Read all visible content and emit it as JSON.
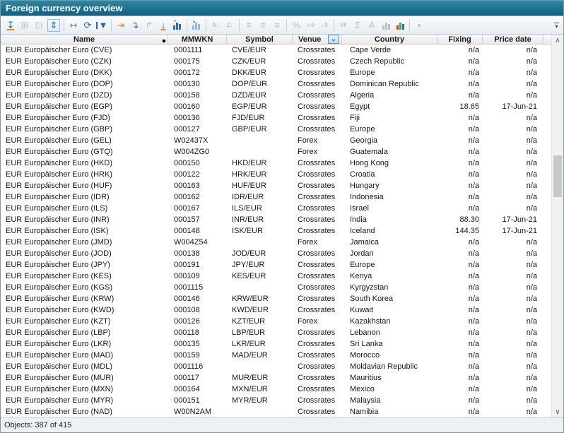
{
  "window": {
    "title": "Foreign currency overview"
  },
  "statusbar": {
    "text": "Objects: 387 of 415"
  },
  "toolbar": {
    "overflow_glyph": "▾",
    "items": [
      {
        "name": "import-row-icon",
        "glyph": "↧",
        "style": "blue-orange",
        "enabled": true
      },
      {
        "name": "expand-rows-icon",
        "glyph": "⊞",
        "enabled": false
      },
      {
        "name": "group-rows-icon",
        "glyph": "⊡",
        "enabled": false
      },
      {
        "name": "fit-height-icon",
        "glyph": "⇕",
        "style": "blue-box",
        "enabled": true
      },
      {
        "sep": true
      },
      {
        "name": "new-view-icon",
        "glyph": "⇿",
        "style": "blue",
        "enabled": true
      },
      {
        "name": "refresh-icon",
        "glyph": "⟳",
        "style": "blue",
        "enabled": true
      },
      {
        "name": "filter-icon",
        "glyph": "▼",
        "style": "filter",
        "enabled": true
      },
      {
        "sep": true
      },
      {
        "name": "insert-column-icon",
        "glyph": "⇥",
        "style": "orange",
        "enabled": true
      },
      {
        "name": "move-down-icon",
        "glyph": "↴",
        "style": "blue",
        "enabled": true
      },
      {
        "name": "move-up-icon",
        "glyph": "↱",
        "enabled": false
      },
      {
        "name": "sort-to-bottom-icon",
        "glyph": "↓",
        "style": "blue-orange",
        "enabled": true
      },
      {
        "name": "chart-values-icon",
        "style": "bars-blue",
        "marker": "▾",
        "marker_color": "#e8820c",
        "enabled": true
      },
      {
        "sep": true
      },
      {
        "name": "stripe-columns-icon",
        "style": "bars-striped",
        "marker": "▴",
        "marker_color": "#3fae49",
        "enabled": true
      },
      {
        "sep": true
      },
      {
        "name": "sort-asc-icon",
        "glyph": "A↓",
        "style": "tiny",
        "enabled": false
      },
      {
        "name": "sort-desc-icon",
        "glyph": "Z↓",
        "style": "tiny",
        "enabled": false
      },
      {
        "sep": true
      },
      {
        "name": "align-left-icon",
        "glyph": "≡",
        "enabled": false
      },
      {
        "name": "align-center-icon",
        "glyph": "≡",
        "enabled": false
      },
      {
        "name": "align-right-icon",
        "glyph": "≡",
        "enabled": false
      },
      {
        "sep": true
      },
      {
        "name": "percent-icon",
        "glyph": "%",
        "enabled": false
      },
      {
        "name": "add-decimal-icon",
        "glyph": "+.0",
        "style": "tiny",
        "enabled": false
      },
      {
        "name": "remove-decimal-icon",
        "glyph": "-.0",
        "style": "tiny",
        "enabled": false
      },
      {
        "sep": true
      },
      {
        "name": "value-format-icon",
        "glyph": "0‖",
        "style": "tiny",
        "enabled": false
      },
      {
        "name": "sum-icon",
        "glyph": "Σ",
        "enabled": false
      },
      {
        "name": "font-icon",
        "glyph": "A",
        "enabled": false
      },
      {
        "name": "chart-gray-icon",
        "style": "bars-gray",
        "enabled": false
      },
      {
        "name": "chart-colored-icon",
        "style": "bars-colored",
        "enabled": true
      },
      {
        "sep": true
      },
      {
        "name": "stop-icon",
        "glyph": "▪",
        "enabled": false
      }
    ]
  },
  "table": {
    "header": {
      "name": "Name",
      "mmwkn": "MMWKN",
      "symbol": "Symbol",
      "venue": "Venue",
      "country": "Country",
      "fixing": "Fixing",
      "price_date": "Price date"
    },
    "venue_filter_glyph": "⌄",
    "rows": [
      {
        "name": "EUR Europäischer Euro (CVE)",
        "mmwkn": "0001111",
        "symbol": "CVE/EUR",
        "venue": "Crossrates",
        "country": "Cape Verde",
        "fixing": "n/a",
        "price_date": "n/a"
      },
      {
        "name": "EUR Europäischer Euro (CZK)",
        "mmwkn": "000175",
        "symbol": "CZK/EUR",
        "venue": "Crossrates",
        "country": "Czech Republic",
        "fixing": "n/a",
        "price_date": "n/a"
      },
      {
        "name": "EUR Europäischer Euro (DKK)",
        "mmwkn": "000172",
        "symbol": "DKK/EUR",
        "venue": "Crossrates",
        "country": "Europe",
        "fixing": "n/a",
        "price_date": "n/a"
      },
      {
        "name": "EUR Europäischer Euro (DOP)",
        "mmwkn": "000130",
        "symbol": "DOP/EUR",
        "venue": "Crossrates",
        "country": "Dominican Republic",
        "fixing": "n/a",
        "price_date": "n/a"
      },
      {
        "name": "EUR Europäischer Euro (DZD)",
        "mmwkn": "000158",
        "symbol": "DZD/EUR",
        "venue": "Crossrates",
        "country": "Algeria",
        "fixing": "n/a",
        "price_date": "n/a"
      },
      {
        "name": "EUR Europäischer Euro (EGP)",
        "mmwkn": "000160",
        "symbol": "EGP/EUR",
        "venue": "Crossrates",
        "country": "Egypt",
        "fixing": "18.65",
        "price_date": "17-Jun-21"
      },
      {
        "name": "EUR Europäischer Euro (FJD)",
        "mmwkn": "000136",
        "symbol": "FJD/EUR",
        "venue": "Crossrates",
        "country": "Fiji",
        "fixing": "n/a",
        "price_date": "n/a"
      },
      {
        "name": "EUR Europäischer Euro (GBP)",
        "mmwkn": "000127",
        "symbol": "GBP/EUR",
        "venue": "Crossrates",
        "country": "Europe",
        "fixing": "n/a",
        "price_date": "n/a"
      },
      {
        "name": "EUR Europäischer Euro (GEL)",
        "mmwkn": "W02437X",
        "symbol": "",
        "venue": "Forex",
        "country": "Georgia",
        "fixing": "n/a",
        "price_date": "n/a"
      },
      {
        "name": "EUR Europäischer Euro (GTQ)",
        "mmwkn": "W004ZG0",
        "symbol": "",
        "venue": "Forex",
        "country": "Guatemala",
        "fixing": "n/a",
        "price_date": "n/a"
      },
      {
        "name": "EUR Europäischer Euro (HKD)",
        "mmwkn": "000150",
        "symbol": "HKD/EUR",
        "venue": "Crossrates",
        "country": "Hong Kong",
        "fixing": "n/a",
        "price_date": "n/a"
      },
      {
        "name": "EUR Europäischer Euro (HRK)",
        "mmwkn": "000122",
        "symbol": "HRK/EUR",
        "venue": "Crossrates",
        "country": "Croatia",
        "fixing": "n/a",
        "price_date": "n/a"
      },
      {
        "name": "EUR Europäischer Euro (HUF)",
        "mmwkn": "000163",
        "symbol": "HUF/EUR",
        "venue": "Crossrates",
        "country": "Hungary",
        "fixing": "n/a",
        "price_date": "n/a"
      },
      {
        "name": "EUR Europäischer Euro (IDR)",
        "mmwkn": "000162",
        "symbol": "IDR/EUR",
        "venue": "Crossrates",
        "country": "Indonesia",
        "fixing": "n/a",
        "price_date": "n/a"
      },
      {
        "name": "EUR Europäischer Euro (ILS)",
        "mmwkn": "000167",
        "symbol": "ILS/EUR",
        "venue": "Crossrates",
        "country": "Israel",
        "fixing": "n/a",
        "price_date": "n/a"
      },
      {
        "name": "EUR Europäischer Euro (INR)",
        "mmwkn": "000157",
        "symbol": "INR/EUR",
        "venue": "Crossrates",
        "country": "India",
        "fixing": "88.30",
        "price_date": "17-Jun-21"
      },
      {
        "name": "EUR Europäischer Euro (ISK)",
        "mmwkn": "000148",
        "symbol": "ISK/EUR",
        "venue": "Crossrates",
        "country": "Iceland",
        "fixing": "144.35",
        "price_date": "17-Jun-21"
      },
      {
        "name": "EUR Europäischer Euro (JMD)",
        "mmwkn": "W004Z54",
        "symbol": "",
        "venue": "Forex",
        "country": "Jamaica",
        "fixing": "n/a",
        "price_date": "n/a"
      },
      {
        "name": "EUR Europäischer Euro (JOD)",
        "mmwkn": "000138",
        "symbol": "JOD/EUR",
        "venue": "Crossrates",
        "country": "Jordan",
        "fixing": "n/a",
        "price_date": "n/a"
      },
      {
        "name": "EUR Europäischer Euro (JPY)",
        "mmwkn": "000191",
        "symbol": "JPY/EUR",
        "venue": "Crossrates",
        "country": "Europe",
        "fixing": "n/a",
        "price_date": "n/a"
      },
      {
        "name": "EUR Europäischer Euro (KES)",
        "mmwkn": "000109",
        "symbol": "KES/EUR",
        "venue": "Crossrates",
        "country": "Kenya",
        "fixing": "n/a",
        "price_date": "n/a"
      },
      {
        "name": "EUR Europäischer Euro (KGS)",
        "mmwkn": "0001115",
        "symbol": "",
        "venue": "Crossrates",
        "country": "Kyrgyzstan",
        "fixing": "n/a",
        "price_date": "n/a"
      },
      {
        "name": "EUR Europäischer Euro (KRW)",
        "mmwkn": "000146",
        "symbol": "KRW/EUR",
        "venue": "Crossrates",
        "country": "South Korea",
        "fixing": "n/a",
        "price_date": "n/a"
      },
      {
        "name": "EUR Europäischer Euro (KWD)",
        "mmwkn": "000108",
        "symbol": "KWD/EUR",
        "venue": "Crossrates",
        "country": "Kuwait",
        "fixing": "n/a",
        "price_date": "n/a"
      },
      {
        "name": "EUR Europäischer Euro (KZT)",
        "mmwkn": "000126",
        "symbol": "KZT/EUR",
        "venue": "Forex",
        "country": "Kazakhstan",
        "fixing": "n/a",
        "price_date": "n/a"
      },
      {
        "name": "EUR Europäischer Euro (LBP)",
        "mmwkn": "000118",
        "symbol": "LBP/EUR",
        "venue": "Crossrates",
        "country": "Lebanon",
        "fixing": "n/a",
        "price_date": "n/a"
      },
      {
        "name": "EUR Europäischer Euro (LKR)",
        "mmwkn": "000135",
        "symbol": "LKR/EUR",
        "venue": "Crossrates",
        "country": "Sri Lanka",
        "fixing": "n/a",
        "price_date": "n/a"
      },
      {
        "name": "EUR Europäischer Euro (MAD)",
        "mmwkn": "000159",
        "symbol": "MAD/EUR",
        "venue": "Crossrates",
        "country": "Morocco",
        "fixing": "n/a",
        "price_date": "n/a"
      },
      {
        "name": "EUR Europäischer Euro (MDL)",
        "mmwkn": "0001116",
        "symbol": "",
        "venue": "Crossrates",
        "country": "Moldavian Republic",
        "fixing": "n/a",
        "price_date": "n/a"
      },
      {
        "name": "EUR Europäischer Euro (MUR)",
        "mmwkn": "000117",
        "symbol": "MUR/EUR",
        "venue": "Crossrates",
        "country": "Mauritius",
        "fixing": "n/a",
        "price_date": "n/a"
      },
      {
        "name": "EUR Europäischer Euro (MXN)",
        "mmwkn": "000164",
        "symbol": "MXN/EUR",
        "venue": "Crossrates",
        "country": "Mexico",
        "fixing": "n/a",
        "price_date": "n/a"
      },
      {
        "name": "EUR Europäischer Euro (MYR)",
        "mmwkn": "000151",
        "symbol": "MYR/EUR",
        "venue": "Crossrates",
        "country": "Malaysia",
        "fixing": "n/a",
        "price_date": "n/a"
      },
      {
        "name": "EUR Europäischer Euro (NAD)",
        "mmwkn": "W00N2AM",
        "symbol": "",
        "venue": "Crossrates",
        "country": "Namibia",
        "fixing": "n/a",
        "price_date": "n/a"
      }
    ]
  },
  "scrollbar": {
    "up_glyph": "∧",
    "down_glyph": "∨"
  }
}
